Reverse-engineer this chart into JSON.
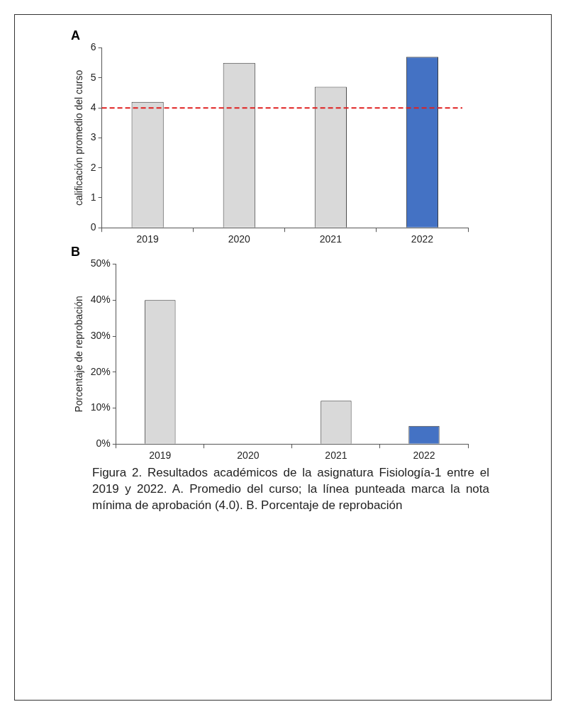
{
  "chart_data": [
    {
      "type": "bar",
      "title": "A",
      "ylabel": "calificación promedio del curso",
      "categories": [
        "2019",
        "2020",
        "2021",
        "2022"
      ],
      "values": [
        4.2,
        5.5,
        4.7,
        5.7
      ],
      "colors": [
        "#d9d9d9",
        "#d9d9d9",
        "#d9d9d9",
        "#4472c4"
      ],
      "ylim": [
        0,
        6
      ],
      "yticks": [
        0,
        1,
        2,
        3,
        4,
        5,
        6
      ],
      "grid": false,
      "ref_lines": [
        {
          "axis": "y",
          "value": 4.0,
          "color": "#e02020",
          "line_style": "dashed"
        }
      ]
    },
    {
      "type": "bar",
      "title": "B",
      "ylabel": "Porcentaje de reprobación",
      "categories": [
        "2019",
        "2020",
        "2021",
        "2022"
      ],
      "values": [
        40,
        0,
        12,
        5
      ],
      "colors": [
        "#d9d9d9",
        "#d9d9d9",
        "#d9d9d9",
        "#4472c4"
      ],
      "ylim": [
        0,
        50
      ],
      "yticks": [
        {
          "value": 0,
          "label": "0%"
        },
        {
          "value": 10,
          "label": "10%"
        },
        {
          "value": 20,
          "label": "20%"
        },
        {
          "value": 30,
          "label": "30%"
        },
        {
          "value": 40,
          "label": "40%"
        },
        {
          "value": 50,
          "label": "50%"
        }
      ],
      "grid": false,
      "annotations": [
        "Figura 2. Resultados académicos de la asignatura Fisiología-1 entre el 2019 y 2022. A. Promedio del curso; la línea punteada marca la nota mínima de aprobación (4.0). B. Porcentaje de reprobación"
      ]
    }
  ]
}
